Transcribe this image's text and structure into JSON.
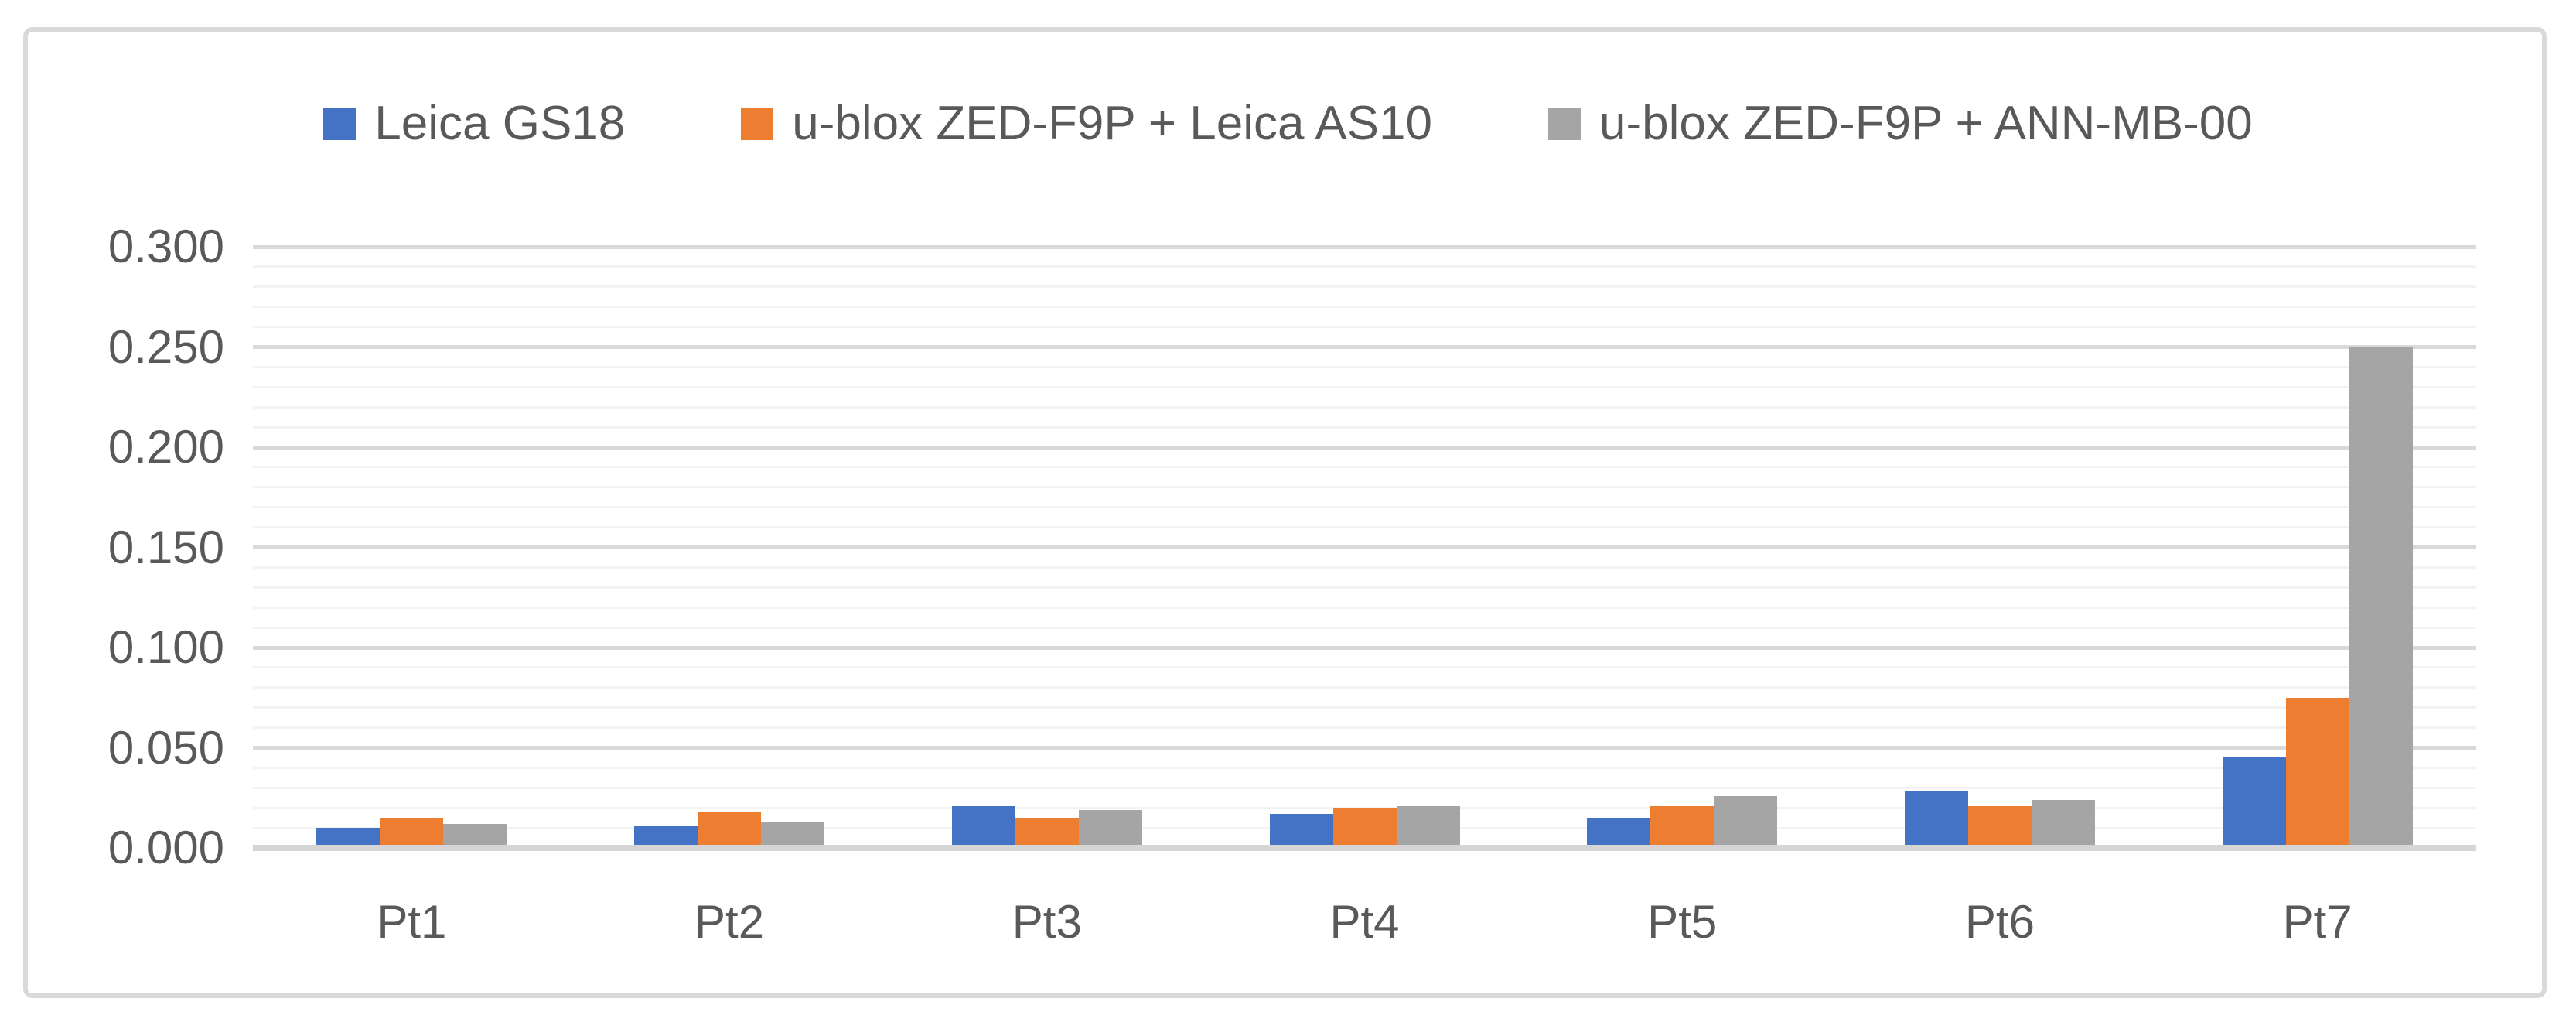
{
  "chart_data": {
    "type": "bar",
    "categories": [
      "Pt1",
      "Pt2",
      "Pt3",
      "Pt4",
      "Pt5",
      "Pt6",
      "Pt7"
    ],
    "series": [
      {
        "name": "Leica GS18",
        "color": "#4472C4",
        "values": [
          0.01,
          0.011,
          0.021,
          0.017,
          0.015,
          0.028,
          0.045
        ]
      },
      {
        "name": "u-blox ZED-F9P + Leica AS10",
        "color": "#ED7D31",
        "values": [
          0.015,
          0.018,
          0.015,
          0.02,
          0.021,
          0.021,
          0.075
        ]
      },
      {
        "name": "u-blox ZED-F9P + ANN-MB-00",
        "color": "#A5A5A5",
        "values": [
          0.012,
          0.013,
          0.019,
          0.021,
          0.026,
          0.024,
          0.25
        ]
      }
    ],
    "ylim": [
      0,
      0.3
    ],
    "y_ticks": [
      "0.000",
      "0.050",
      "0.100",
      "0.150",
      "0.200",
      "0.250",
      "0.300"
    ],
    "y_major_unit": 0.05,
    "y_minor_unit": 0.01,
    "grid": {
      "major_color": "#D9D9D9",
      "minor_color": "#F2F2F2",
      "visible": true
    },
    "legend_position": "top",
    "axis_text_color": "#595959",
    "frame_border_color": "#D9D9D9"
  }
}
